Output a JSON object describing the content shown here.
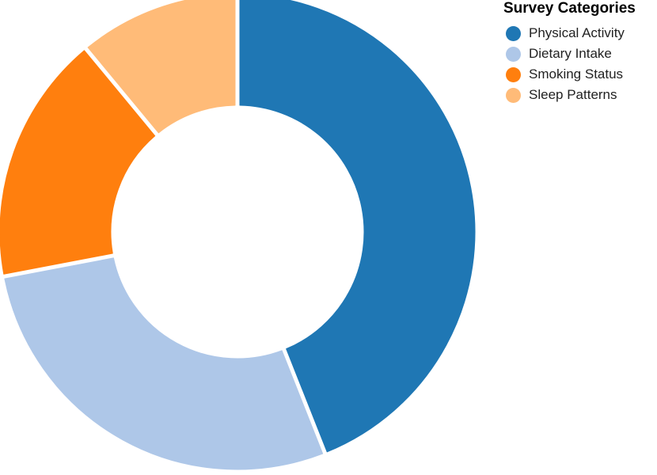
{
  "chart_data": {
    "type": "pie",
    "variant": "donut",
    "title": "",
    "legend": {
      "title": "Survey Categories",
      "position": "top-right"
    },
    "categories": [
      "Physical Activity",
      "Dietary Intake",
      "Smoking Status",
      "Sleep Patterns"
    ],
    "values": [
      44,
      28,
      17,
      11
    ],
    "colors": [
      "#1f77b4",
      "#aec7e8",
      "#ff7f0e",
      "#ffbb78"
    ],
    "start_angle_deg": 0,
    "direction": "clockwise"
  }
}
